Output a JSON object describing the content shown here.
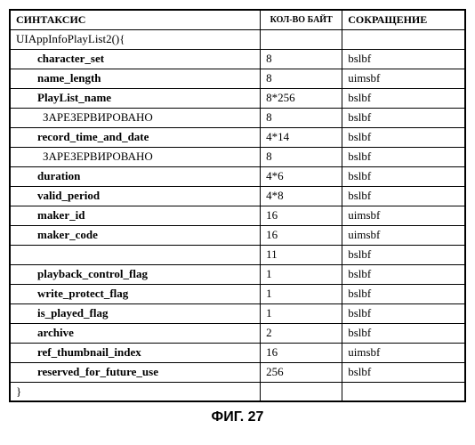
{
  "header": {
    "syntax": "СИНТАКСИС",
    "bytes": "КОЛ-ВО БАЙТ",
    "abbr": "СОКРАЩЕНИЕ"
  },
  "open_row": "UIAppInfoPlayList2(){",
  "close_row": "}",
  "rows": [
    {
      "name": "character_set",
      "bytes": "8",
      "abbr": "bslbf",
      "bold": true,
      "indent": "indent-1"
    },
    {
      "name": "name_length",
      "bytes": "8",
      "abbr": "uimsbf",
      "bold": true,
      "indent": "indent-1"
    },
    {
      "name": "PlayList_name",
      "bytes": "8*256",
      "abbr": "bslbf",
      "bold": true,
      "indent": "indent-1"
    },
    {
      "name": "ЗАРЕЗЕРВИРОВАНО",
      "bytes": "8",
      "abbr": "bslbf",
      "bold": false,
      "indent": "indent-1b"
    },
    {
      "name": "record_time_and_date",
      "bytes": "4*14",
      "abbr": "bslbf",
      "bold": true,
      "indent": "indent-1"
    },
    {
      "name": "ЗАРЕЗЕРВИРОВАНО",
      "bytes": "8",
      "abbr": "bslbf",
      "bold": false,
      "indent": "indent-1b"
    },
    {
      "name": "duration",
      "bytes": "4*6",
      "abbr": "bslbf",
      "bold": true,
      "indent": "indent-1"
    },
    {
      "name": "valid_period",
      "bytes": "4*8",
      "abbr": "bslbf",
      "bold": true,
      "indent": "indent-1"
    },
    {
      "name": "maker_id",
      "bytes": "16",
      "abbr": "uimsbf",
      "bold": true,
      "indent": "indent-1"
    },
    {
      "name": "maker_code",
      "bytes": "16",
      "abbr": "uimsbf",
      "bold": true,
      "indent": "indent-1"
    },
    {
      "name": "",
      "bytes": "11",
      "abbr": "bslbf",
      "bold": false,
      "indent": "indent-1"
    },
    {
      "name": "playback_control_flag",
      "bytes": "1",
      "abbr": "bslbf",
      "bold": true,
      "indent": "indent-1"
    },
    {
      "name": "write_protect_flag",
      "bytes": "1",
      "abbr": "bslbf",
      "bold": true,
      "indent": "indent-1"
    },
    {
      "name": "is_played_flag",
      "bytes": "1",
      "abbr": "bslbf",
      "bold": true,
      "indent": "indent-1"
    },
    {
      "name": "archive",
      "bytes": "2",
      "abbr": "bslbf",
      "bold": true,
      "indent": "indent-1"
    },
    {
      "name": "ref_thumbnail_index",
      "bytes": "16",
      "abbr": "uimsbf",
      "bold": true,
      "indent": "indent-1"
    },
    {
      "name": "reserved_for_future_use",
      "bytes": "256",
      "abbr": "bslbf",
      "bold": true,
      "indent": "indent-1"
    }
  ],
  "caption": "ФИГ. 27"
}
